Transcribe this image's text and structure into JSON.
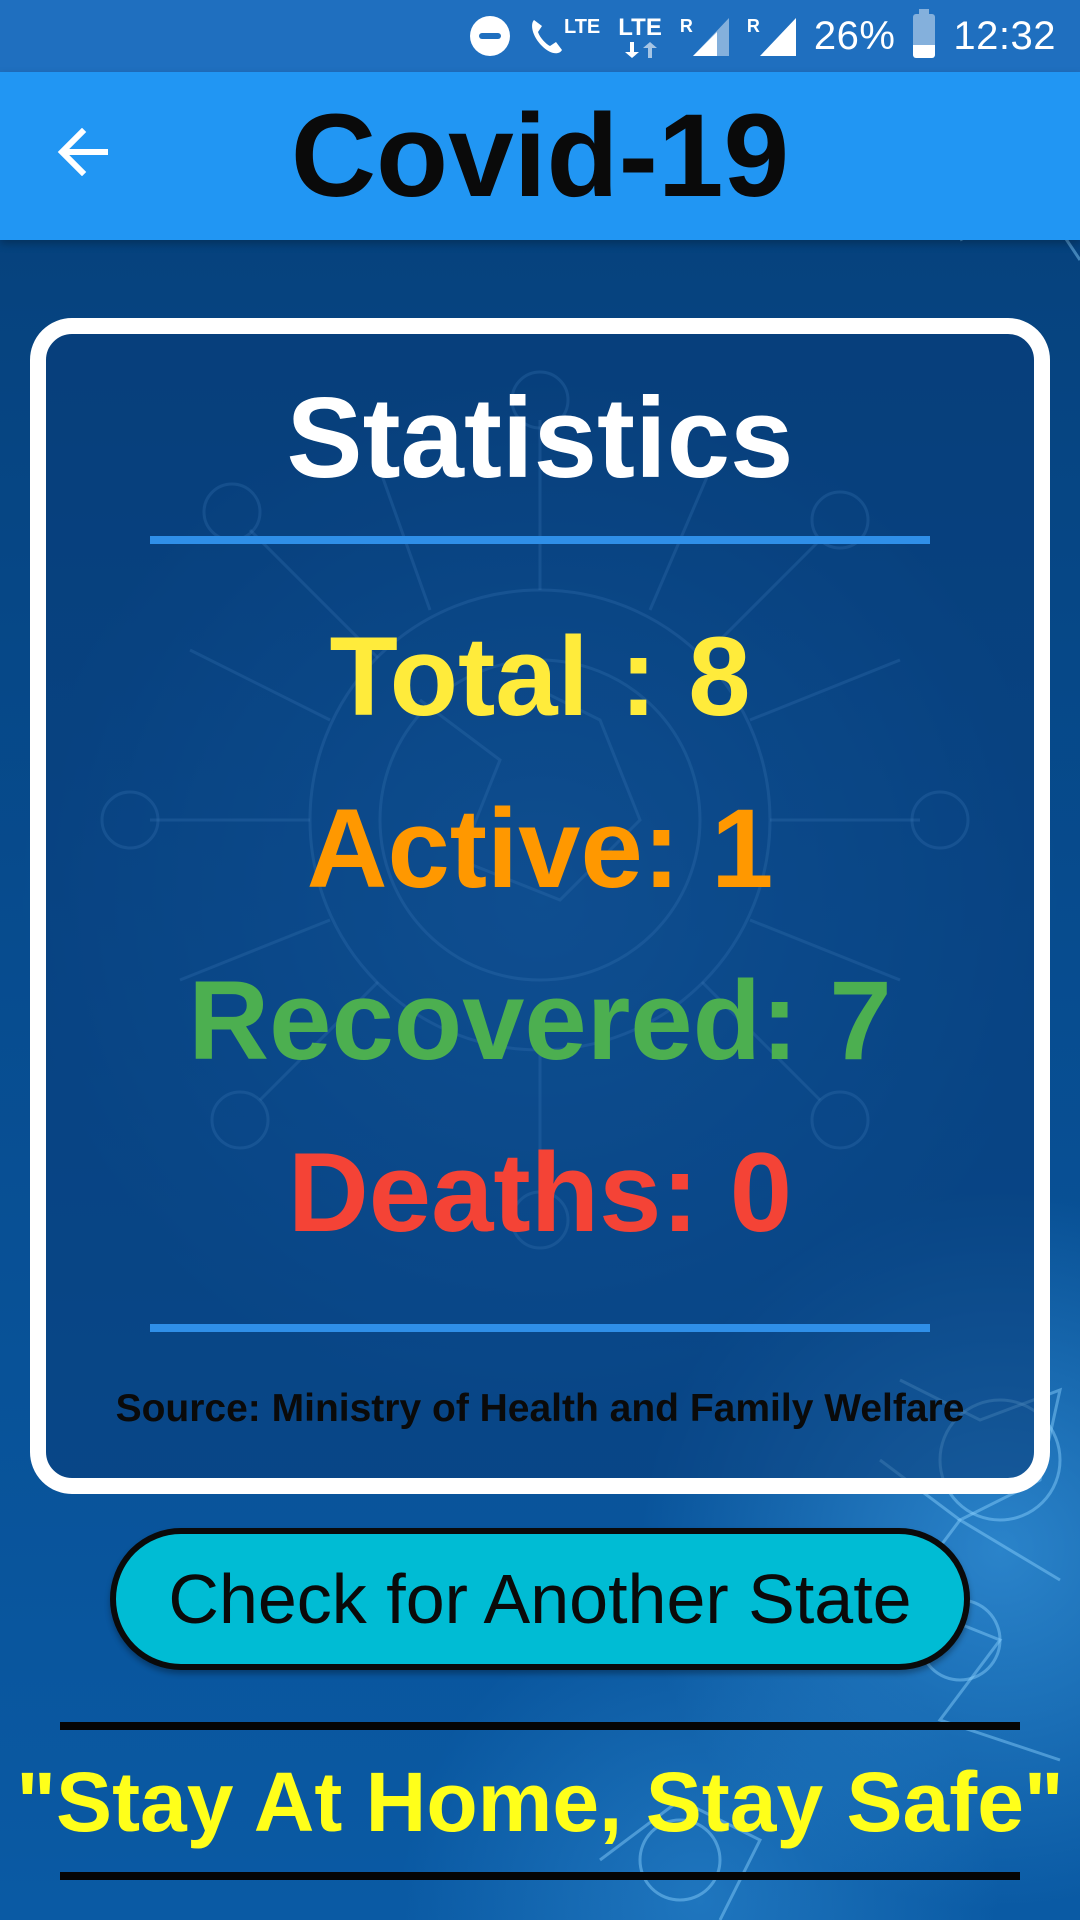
{
  "status_bar": {
    "lte_label_1": "LTE",
    "lte_label_2": "LTE",
    "roaming_1": "R",
    "roaming_2": "R",
    "battery": "26%",
    "time": "12:32",
    "icons": [
      "do-not-disturb-icon",
      "volte-call-icon",
      "lte-data-icon",
      "signal-icon",
      "signal-icon",
      "battery-icon"
    ]
  },
  "app_bar": {
    "title": "Covid-19",
    "back_icon": "arrow-left-icon",
    "color": "#2196f3"
  },
  "statistics": {
    "title": "Statistics",
    "total": "Total : 8",
    "active": "Active: 1",
    "recovered": "Recovered: 7",
    "deaths": "Deaths: 0",
    "source": "Source: Ministry of Health and Family Welfare",
    "colors": {
      "total": "#ffeb3b",
      "active": "#ff9800",
      "recovered": "#4caf50",
      "deaths": "#f44336"
    }
  },
  "actions": {
    "another_state_label": "Check for Another State",
    "button_color": "#00bcd4"
  },
  "slogan": {
    "text": "\"Stay At Home, Stay Safe\"",
    "color": "#ffff1a"
  }
}
